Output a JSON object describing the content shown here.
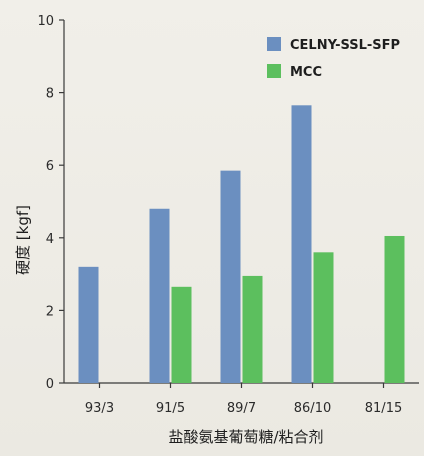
{
  "chart_data": {
    "type": "bar",
    "title": "",
    "xlabel": "盐酸氨基葡萄糖/粘合剂",
    "ylabel": "硬度 [kgf]",
    "categories": [
      "93/3",
      "91/5",
      "89/7",
      "86/10",
      "81/15"
    ],
    "ylim": [
      0,
      10
    ],
    "yticks": [
      0,
      2,
      4,
      6,
      8,
      10
    ],
    "grid": false,
    "legend_position": "top-right",
    "series": [
      {
        "name": "CELNY-SSL-SFP",
        "color": "#6b8fc0",
        "values": [
          3.2,
          4.8,
          5.85,
          7.65,
          null
        ]
      },
      {
        "name": "MCC",
        "color": "#5cbf5e",
        "values": [
          null,
          2.65,
          2.95,
          3.6,
          4.05
        ]
      }
    ]
  }
}
